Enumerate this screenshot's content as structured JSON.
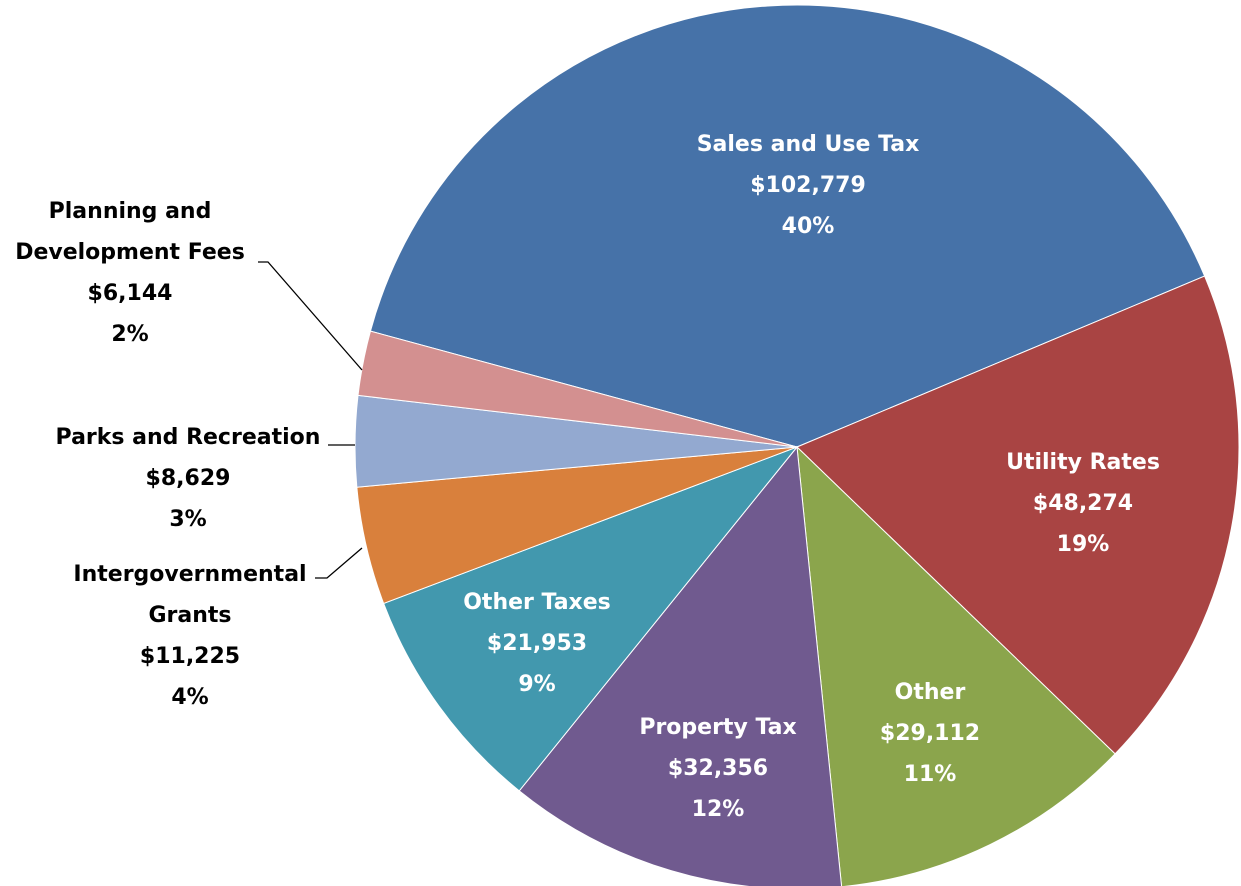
{
  "chart_data": {
    "type": "pie",
    "categories": [
      "Sales and Use Tax",
      "Utility Rates",
      "Other",
      "Property Tax",
      "Other Taxes",
      "Intergovernmental Grants",
      "Parks and Recreation",
      "Planning and Development Fees"
    ],
    "values": [
      102779,
      48274,
      29112,
      32356,
      21953,
      11225,
      8629,
      6144
    ],
    "value_labels": [
      "$102,779",
      "$48,274",
      "$29,112",
      "$32,356",
      "$21,953",
      "$11,225",
      "$8,629",
      "$6,144"
    ],
    "percent_labels": [
      "40%",
      "19%",
      "11%",
      "12%",
      "9%",
      "4%",
      "3%",
      "2%"
    ],
    "colors": [
      "#4672a8",
      "#a94443",
      "#8ba54c",
      "#705a8f",
      "#4298ae",
      "#d9803c",
      "#93a9d0",
      "#d39090"
    ]
  }
}
